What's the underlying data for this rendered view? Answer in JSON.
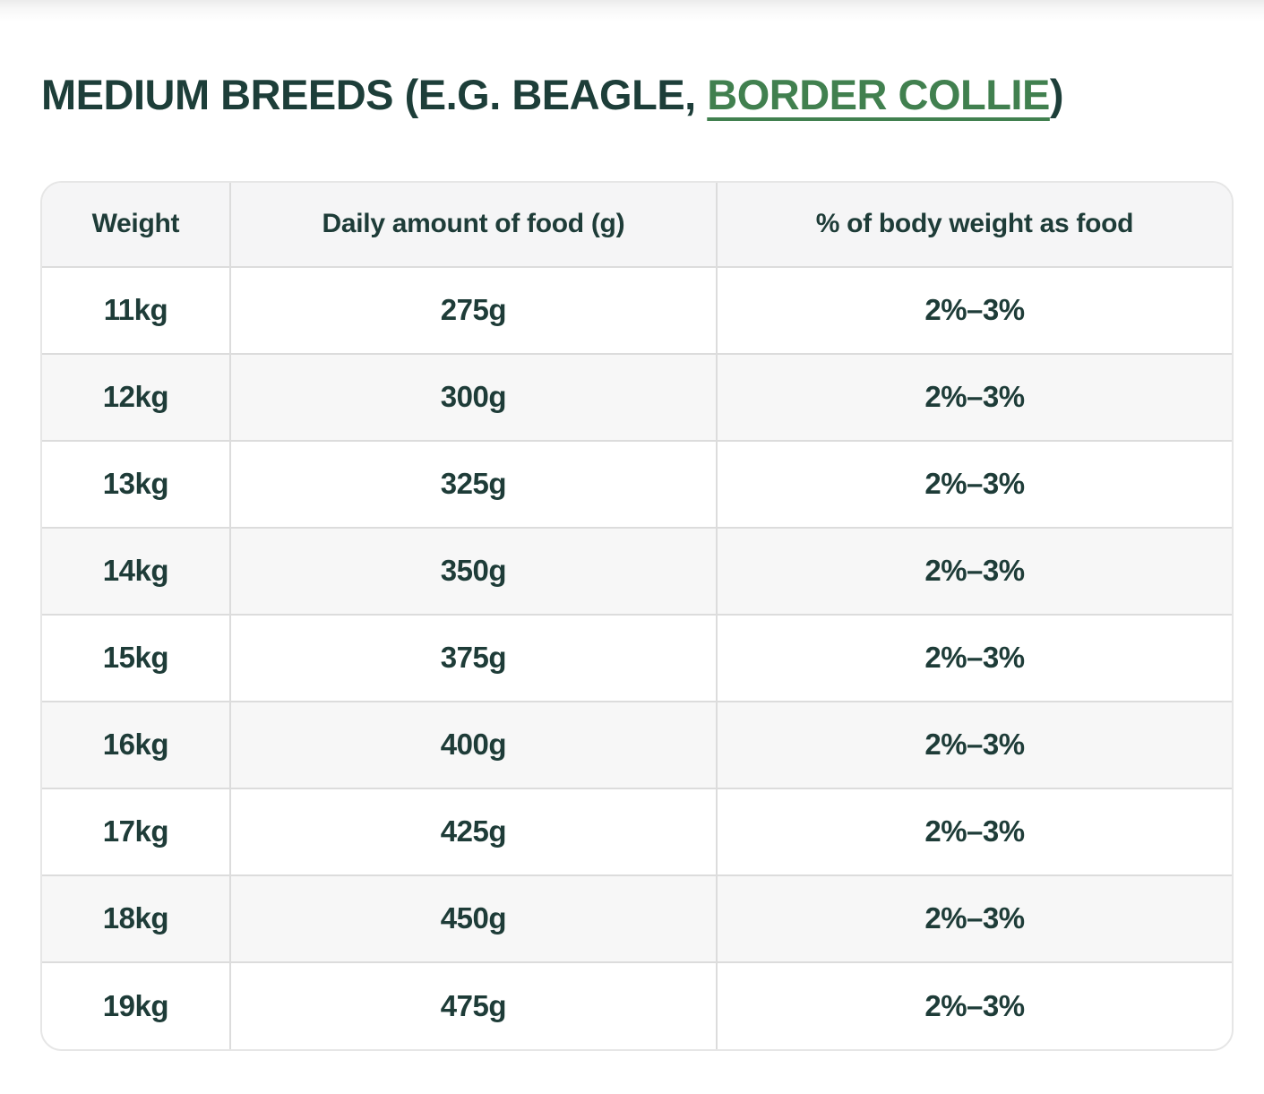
{
  "title": {
    "prefix": "MEDIUM BREEDS (E.G. BEAGLE, ",
    "link": "BORDER COLLIE",
    "suffix": ")"
  },
  "colors": {
    "title_text": "#1d3e39",
    "link_green": "#41804f",
    "table_text": "#1e3c38",
    "header_background": "#f5f5f6",
    "stripe_background": "#f7f7f7",
    "grid_border": "#dcdcdc"
  },
  "table": {
    "columns": [
      "Weight",
      "Daily amount of food (g)",
      "% of body weight as food"
    ],
    "rows": [
      [
        "11kg",
        "275g",
        "2%–3%"
      ],
      [
        "12kg",
        "300g",
        "2%–3%"
      ],
      [
        "13kg",
        "325g",
        "2%–3%"
      ],
      [
        "14kg",
        "350g",
        "2%–3%"
      ],
      [
        "15kg",
        "375g",
        "2%–3%"
      ],
      [
        "16kg",
        "400g",
        "2%–3%"
      ],
      [
        "17kg",
        "425g",
        "2%–3%"
      ],
      [
        "18kg",
        "450g",
        "2%–3%"
      ],
      [
        "19kg",
        "475g",
        "2%–3%"
      ]
    ]
  },
  "chart_data": {
    "type": "table",
    "title": "MEDIUM BREEDS (E.G. BEAGLE, BORDER COLLIE)",
    "columns": [
      "Weight",
      "Daily amount of food (g)",
      "% of body weight as food"
    ],
    "weights_kg": [
      11,
      12,
      13,
      14,
      15,
      16,
      17,
      18,
      19
    ],
    "daily_food_g": [
      275,
      300,
      325,
      350,
      375,
      400,
      425,
      450,
      475
    ],
    "pct_body_weight": [
      "2%–3%",
      "2%–3%",
      "2%–3%",
      "2%–3%",
      "2%–3%",
      "2%–3%",
      "2%–3%",
      "2%–3%",
      "2%–3%"
    ]
  }
}
